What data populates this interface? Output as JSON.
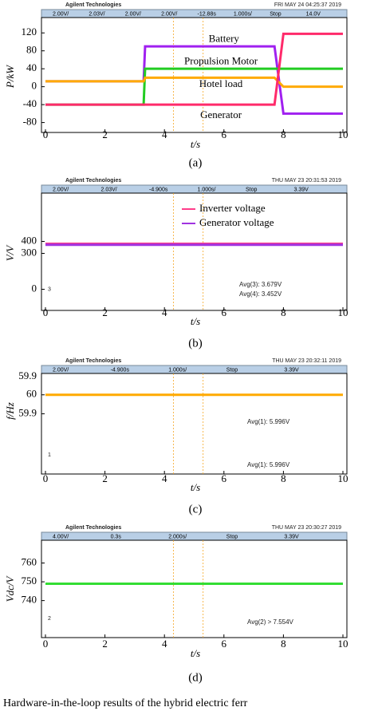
{
  "chart_data": [
    {
      "type": "line",
      "brand": "Agilent Technologies",
      "timestamp": "FRI MAY 24 04:25:37 2019",
      "readouts": [
        "2.00V/",
        "2.03V/",
        "2.00V/",
        "2.00V/",
        "-12.88s",
        "1.000s/",
        "Stop",
        "14.0V"
      ],
      "ylabel": "P/kW",
      "xlabel": "t/s",
      "panel_label": "(a)",
      "x": [
        0,
        3.3,
        3.35,
        7.7,
        8.0,
        10
      ],
      "xlim": [
        0,
        10
      ],
      "xticks": [
        0,
        2,
        4,
        6,
        8,
        10
      ],
      "ylim": [
        -95,
        140
      ],
      "yticks": [
        120,
        80,
        40,
        0,
        -40,
        -80
      ],
      "series": [
        {
          "name": "Battery",
          "color": "#a020f0",
          "values": [
            12,
            12,
            90,
            90,
            -60,
            -60
          ]
        },
        {
          "name": "Propulsion Motor",
          "color": "#22cc22",
          "values": [
            -40,
            -40,
            40,
            40,
            40,
            40
          ]
        },
        {
          "name": "Hotel load",
          "color": "#ffaa00",
          "values": [
            12,
            12,
            20,
            20,
            0,
            0
          ]
        },
        {
          "name": "Generator",
          "color": "#ff2a6a",
          "values": [
            -40,
            -40,
            -40,
            -40,
            118,
            118
          ]
        }
      ]
    },
    {
      "type": "line",
      "brand": "Agilent Technologies",
      "timestamp": "THU MAY 23 20:31:53 2019",
      "readouts": [
        "2.00V/",
        "2.03V/",
        "-4.900s",
        "1.000s/",
        "Stop",
        "3.39V"
      ],
      "ylabel": "V/V",
      "xlabel": "t/s",
      "panel_label": "(b)",
      "x": [
        0,
        10
      ],
      "xlim": [
        0,
        10
      ],
      "xticks": [
        0,
        2,
        4,
        6,
        8,
        10
      ],
      "ylim": [
        -150,
        750
      ],
      "yticks": [
        400,
        300,
        0
      ],
      "annotations": [
        "Avg(3): 3.679V",
        "Avg(4): 3.452V"
      ],
      "channel_marker": "3",
      "series": [
        {
          "name": "Inverter voltage",
          "color": "#ff3d8a",
          "values": [
            380,
            380
          ]
        },
        {
          "name": "Generator voltage",
          "color": "#a033e0",
          "values": [
            372,
            372
          ]
        }
      ]
    },
    {
      "type": "line",
      "brand": "Agilent Technologies",
      "timestamp": "THU MAY 23 20:32:11 2019",
      "readouts": [
        "2.00V/",
        "-4.900s",
        "1.000s/",
        "Stop",
        "3.39V"
      ],
      "ylabel": "f/Hz",
      "xlabel": "t/s",
      "panel_label": "(c)",
      "top_label": "59.9",
      "x": [
        0,
        10
      ],
      "xlim": [
        0,
        10
      ],
      "xticks": [
        0,
        2,
        4,
        6,
        8,
        10
      ],
      "ylim": [
        59.6,
        60.23
      ],
      "yticks": [
        60,
        59.9
      ],
      "annotations": [
        "Avg(1): 5.996V",
        "Avg(1): 5.996V"
      ],
      "channel_marker": "1",
      "series": [
        {
          "color": "#ffaa00",
          "values": [
            60,
            60
          ]
        }
      ]
    },
    {
      "type": "line",
      "brand": "Agilent Technologies",
      "timestamp": "THU MAY 23 20:30:27 2019",
      "readouts": [
        "4.00V/",
        "0.3s",
        "2.000s/",
        "Stop",
        "3.39V"
      ],
      "ylabel": "Vdc/V",
      "xlabel": "t/s",
      "panel_label": "(d)",
      "x": [
        0,
        10
      ],
      "xlim": [
        0,
        10
      ],
      "xticks": [
        0,
        2,
        4,
        6,
        8,
        10
      ],
      "ylim": [
        722,
        770
      ],
      "yticks": [
        760,
        750,
        740
      ],
      "annotations": [
        "Avg(2) > 7.554V"
      ],
      "channel_marker": "2",
      "series": [
        {
          "color": "#33dd33",
          "values": [
            749,
            749
          ]
        }
      ]
    }
  ],
  "caption": "Hardware-in-the-loop results of the hybrid electric ferr"
}
